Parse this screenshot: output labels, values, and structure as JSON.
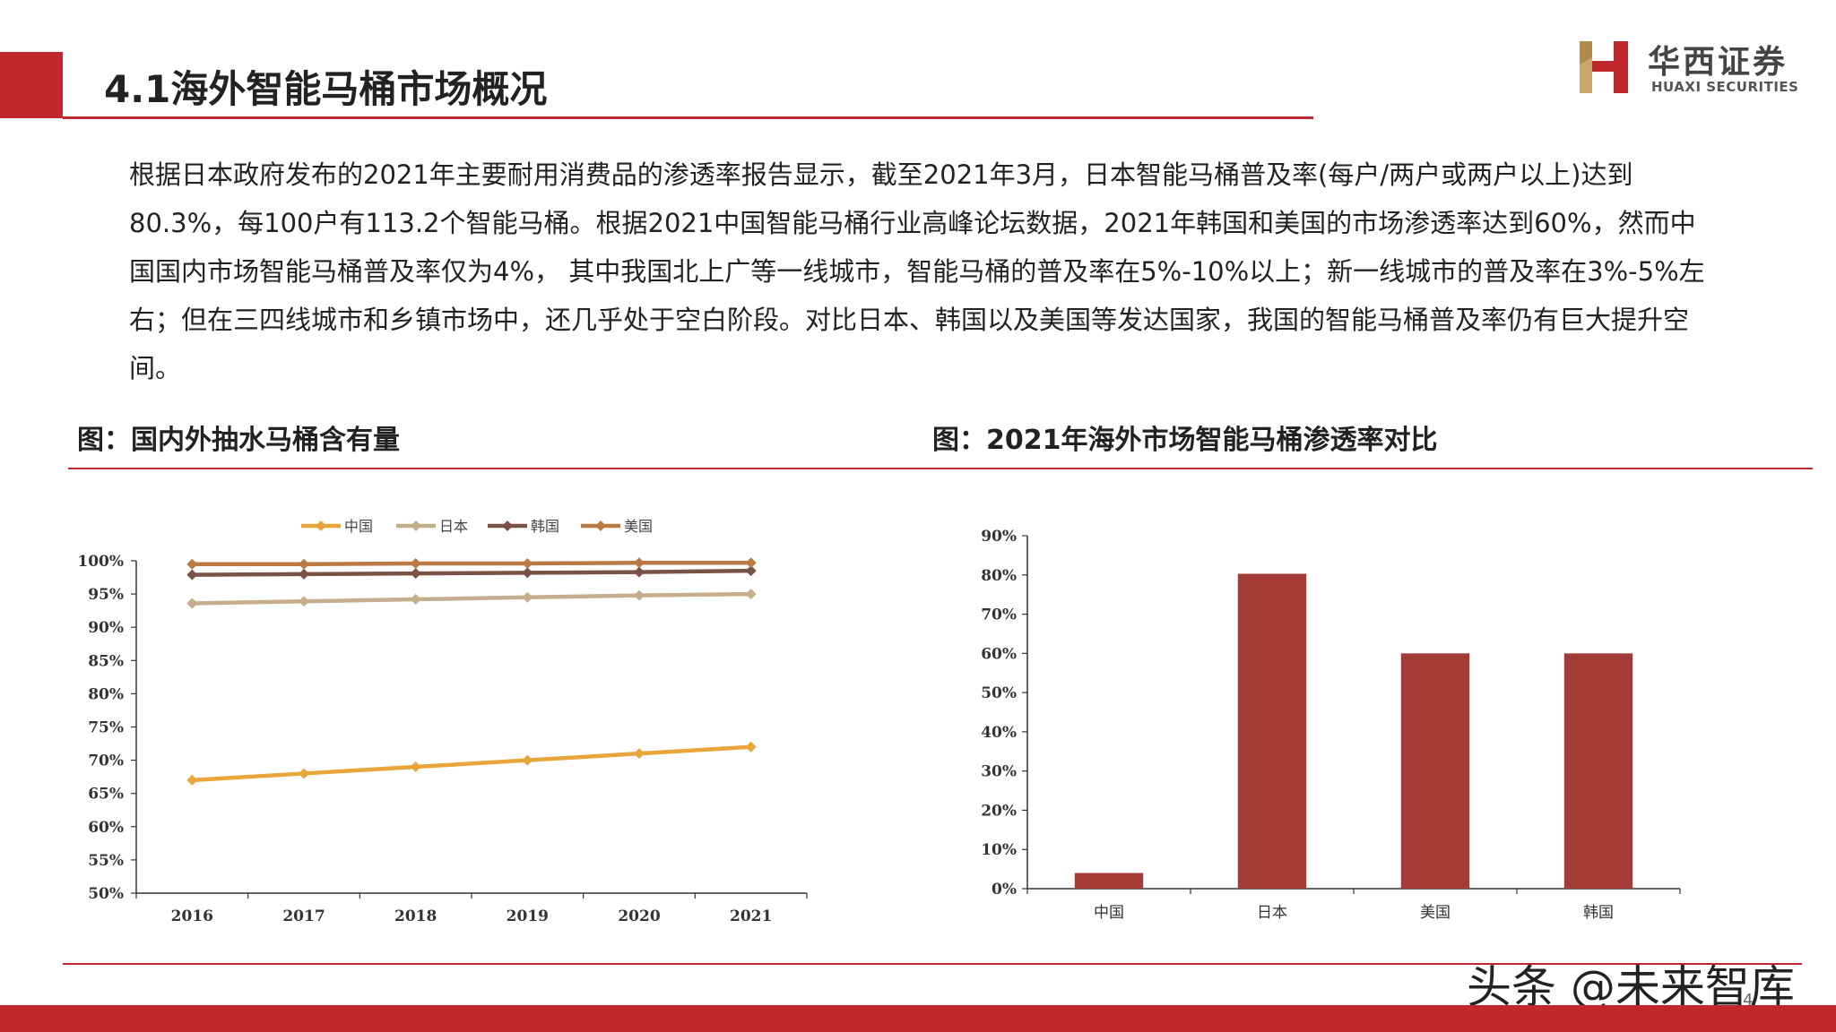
{
  "page": {
    "title": "4.1海外智能马桶市场概况",
    "page_number": "4",
    "watermark": "头条 @未来智库"
  },
  "logo": {
    "cn": "华西证券",
    "en": "HUAXI SECURITIES"
  },
  "body": {
    "text": "根据日本政府发布的2021年主要耐用消费品的渗透率报告显示，截至2021年3月，日本智能马桶普及率(每户/两户或两户以上)达到80.3%，每100户有113.2个智能马桶。根据2021中国智能马桶行业高峰论坛数据，2021年韩国和美国的市场渗透率达到60%，然而中国国内市场智能马桶普及率仅为4%， 其中我国北上广等一线城市，智能马桶的普及率在5%-10%以上；新一线城市的普及率在3%-5%左右；但在三四线城市和乡镇市场中，还几乎处于空白阶段。对比日本、韩国以及美国等发达国家，我国的智能马桶普及率仍有巨大提升空间。"
  },
  "colors": {
    "accent": "#c0282d",
    "bar": "#a33b36",
    "china": "#e8a53a",
    "japan": "#c4ae8e",
    "korea": "#7a5248",
    "usa": "#b97a44"
  },
  "chart_data": [
    {
      "type": "line",
      "title": "图：国内外抽水马桶含有量",
      "x": [
        "2016",
        "2017",
        "2018",
        "2019",
        "2020",
        "2021"
      ],
      "series": [
        {
          "name": "中国",
          "values": [
            67,
            68,
            69,
            70,
            71,
            72
          ]
        },
        {
          "name": "日本",
          "values": [
            93.6,
            93.9,
            94.2,
            94.5,
            94.8,
            95.0
          ]
        },
        {
          "name": "韩国",
          "values": [
            97.9,
            98.0,
            98.1,
            98.2,
            98.3,
            98.5
          ]
        },
        {
          "name": "美国",
          "values": [
            99.5,
            99.5,
            99.6,
            99.6,
            99.7,
            99.7
          ]
        }
      ],
      "ylim": [
        50,
        100
      ],
      "yticks": [
        "50%",
        "55%",
        "60%",
        "65%",
        "70%",
        "75%",
        "80%",
        "85%",
        "90%",
        "95%",
        "100%"
      ],
      "legend": "top",
      "grid": false
    },
    {
      "type": "bar",
      "title": "图：2021年海外市场智能马桶渗透率对比",
      "categories": [
        "中国",
        "日本",
        "美国",
        "韩国"
      ],
      "values": [
        4,
        80.3,
        60,
        60
      ],
      "ylim": [
        0,
        90
      ],
      "yticks": [
        "0%",
        "10%",
        "20%",
        "30%",
        "40%",
        "50%",
        "60%",
        "70%",
        "80%",
        "90%"
      ],
      "grid": false
    }
  ]
}
